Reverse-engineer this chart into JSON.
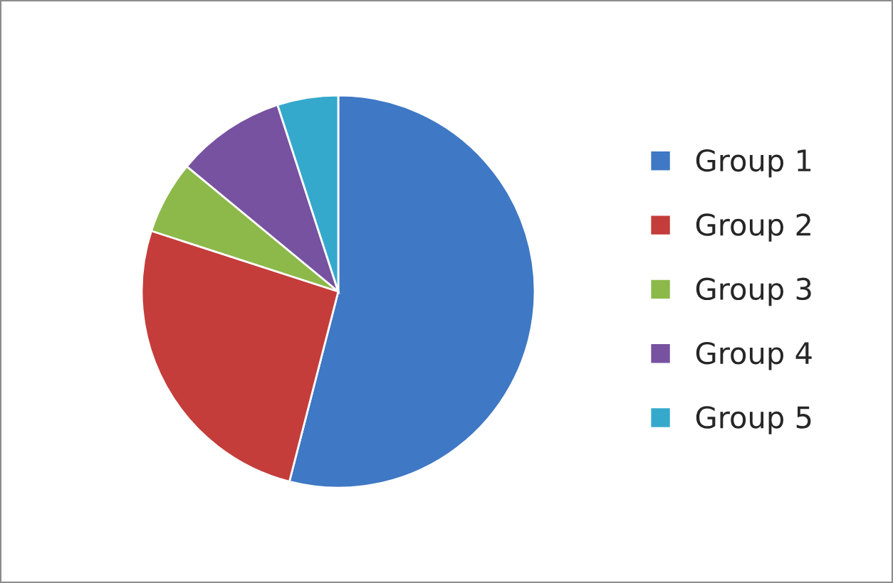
{
  "chart_data": {
    "type": "pie",
    "categories": [
      "Group 1",
      "Group 2",
      "Group 3",
      "Group 4",
      "Group 5"
    ],
    "values": [
      54,
      26,
      6,
      9,
      5
    ],
    "colors": [
      "#3f78c4",
      "#c43d3a",
      "#8cb94a",
      "#7652a0",
      "#35a9cc"
    ],
    "legend": "right"
  }
}
